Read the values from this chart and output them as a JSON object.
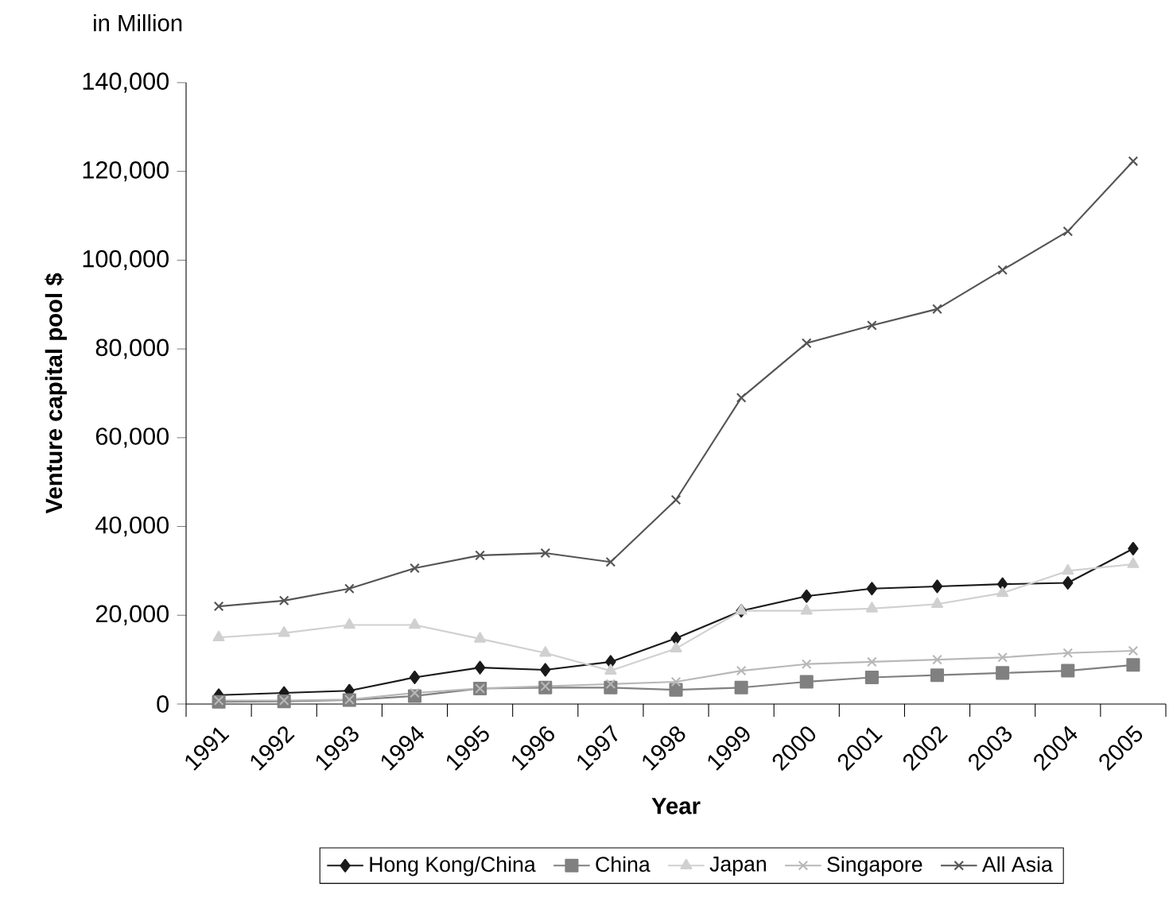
{
  "chart_data": {
    "type": "line",
    "xlabel": "Year",
    "ylabel": "Venture capital pool $",
    "annotations": [
      "in Million"
    ],
    "categories": [
      "1991",
      "1992",
      "1993",
      "1994",
      "1995",
      "1996",
      "1997",
      "1998",
      "1999",
      "2000",
      "2001",
      "2002",
      "2003",
      "2004",
      "2005"
    ],
    "ylim": [
      0,
      140000
    ],
    "yticks": [
      {
        "value": 0,
        "label": "0"
      },
      {
        "value": 20000,
        "label": "20,000"
      },
      {
        "value": 40000,
        "label": "40,000"
      },
      {
        "value": 60000,
        "label": "60,000"
      },
      {
        "value": 80000,
        "label": "80,000"
      },
      {
        "value": 100000,
        "label": "100,000"
      },
      {
        "value": 120000,
        "label": "120,000"
      },
      {
        "value": 140000,
        "label": "140,000"
      }
    ],
    "legend": "bottom",
    "grid": false,
    "series": [
      {
        "name": "Hong Kong/China",
        "color": "#1a1a1a",
        "marker": "diamond",
        "values": [
          2000,
          2500,
          3000,
          6000,
          8200,
          7700,
          9500,
          14800,
          21000,
          24300,
          26000,
          26500,
          27000,
          27300,
          35000
        ]
      },
      {
        "name": "China",
        "color": "#808080",
        "marker": "square",
        "values": [
          500,
          600,
          900,
          1800,
          3500,
          3700,
          3700,
          3200,
          3700,
          5000,
          6000,
          6500,
          7000,
          7500,
          8800
        ]
      },
      {
        "name": "Japan",
        "color": "#d0d0d0",
        "marker": "triangle",
        "values": [
          15000,
          16000,
          17800,
          17800,
          14700,
          11500,
          7500,
          12500,
          21000,
          21000,
          21500,
          22500,
          25000,
          30000,
          31500
        ]
      },
      {
        "name": "Singapore",
        "color": "#b8b8b8",
        "marker": "cross",
        "values": [
          800,
          800,
          1000,
          2500,
          3500,
          4000,
          4500,
          5000,
          7500,
          9000,
          9500,
          10000,
          10500,
          11500,
          12000
        ]
      },
      {
        "name": "All Asia",
        "color": "#555555",
        "marker": "cross",
        "values": [
          22000,
          23300,
          26000,
          30600,
          33500,
          34000,
          32000,
          46000,
          69000,
          81300,
          85300,
          89000,
          97800,
          106500,
          122300
        ]
      }
    ]
  }
}
